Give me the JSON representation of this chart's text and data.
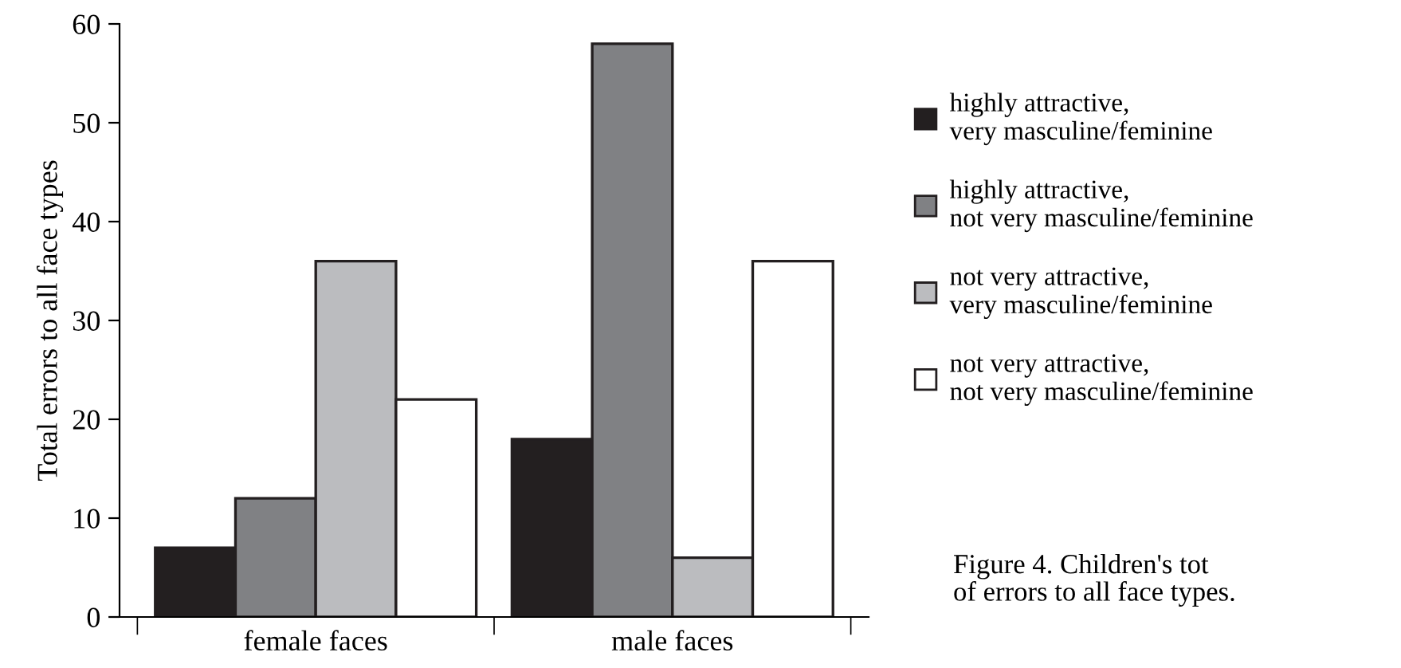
{
  "chart_data": {
    "type": "bar",
    "ylabel": "Total errors to all face types",
    "categories": [
      "female faces",
      "male faces"
    ],
    "series": [
      {
        "name": "highly attractive,\nvery masculine/feminine",
        "color": "#231f20",
        "values": [
          7,
          18
        ]
      },
      {
        "name": "highly attractive,\nnot very masculine/feminine",
        "color": "#808184",
        "values": [
          12,
          58
        ]
      },
      {
        "name": "not very attractive,\nvery masculine/feminine",
        "color": "#bbbcbf",
        "values": [
          36,
          6
        ]
      },
      {
        "name": "not very attractive,\nnot very masculine/feminine",
        "color": "#ffffff",
        "values": [
          22,
          36
        ]
      }
    ],
    "ylim": [
      0,
      60
    ],
    "yticks": [
      0,
      10,
      20,
      30,
      40,
      50,
      60
    ],
    "grid": false,
    "legend": "right",
    "annotations": [
      "Figure 4. Children's tot\nof errors to all face types."
    ]
  }
}
